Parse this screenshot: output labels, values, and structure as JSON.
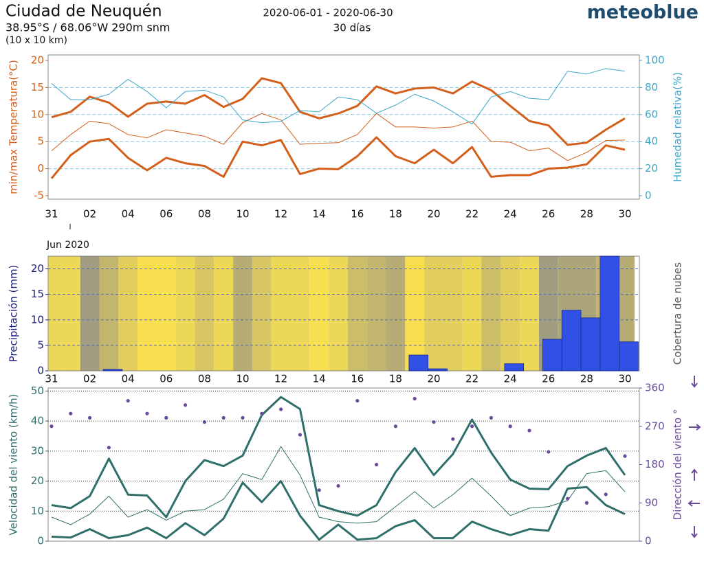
{
  "header": {
    "title": "Ciudad de Neuquén",
    "coords": "38.95°S / 68.06°W   290m snm",
    "grid": "(10 x 10 km)",
    "period": "2020-06-01 - 2020-06-30",
    "days": "30 días",
    "brand": "meteoblue"
  },
  "chart_data": [
    {
      "type": "line",
      "categories": [
        "31",
        null,
        "02",
        null,
        "04",
        null,
        "06",
        null,
        "08",
        null,
        "10",
        null,
        "12",
        null,
        "14",
        null,
        "16",
        null,
        "18",
        null,
        "20",
        null,
        "22",
        null,
        "24",
        null,
        "26",
        null,
        "28",
        null,
        "30"
      ],
      "xlabel": "Jun 2020",
      "ylabel": "min/max Temperatura(°C)",
      "y2label": "Humedad relativa(%)",
      "ylim": [
        -5,
        20
      ],
      "yticks": [
        -5,
        0,
        5,
        10,
        15,
        20
      ],
      "y2lim": [
        0,
        100
      ],
      "y2ticks": [
        0,
        20,
        40,
        60,
        80,
        100
      ],
      "grid": true,
      "series": [
        {
          "color": "#d35f1a",
          "width": 3,
          "values": [
            9.5,
            10.5,
            13.3,
            12.2,
            9.6,
            12,
            12.4,
            12,
            13.6,
            11.4,
            12.9,
            16.7,
            15.8,
            10.5,
            9.3,
            10.2,
            11.6,
            15.2,
            13.9,
            14.8,
            15,
            13.9,
            16.1,
            14.5,
            11.6,
            8.8,
            8,
            4.4,
            4.8,
            7.2,
            9.3
          ]
        },
        {
          "color": "#d35f1a",
          "width": 1,
          "values": [
            3.3,
            6.3,
            8.8,
            8.3,
            6.3,
            5.7,
            7.2,
            6.6,
            6,
            4.5,
            8.5,
            10.2,
            9,
            4.5,
            4.7,
            4.8,
            6.3,
            10.2,
            7.7,
            7.7,
            7.5,
            7.7,
            8.8,
            5,
            4.9,
            3.3,
            3.8,
            1.5,
            3,
            5.2,
            5.3
          ]
        },
        {
          "color": "#d35f1a",
          "width": 3,
          "values": [
            -1.8,
            2.5,
            5,
            5.5,
            2,
            -0.3,
            2,
            1,
            0.5,
            -1.5,
            5,
            4.3,
            5.3,
            -1,
            0,
            -0.1,
            2.3,
            5.8,
            2.3,
            1,
            3.5,
            1,
            4,
            -1.5,
            -1.2,
            -1.2,
            0,
            0.2,
            0.8,
            4.3,
            3.5
          ]
        },
        {
          "color": "#3aa6c9",
          "width": 1,
          "axis": "y2",
          "values": [
            83,
            71,
            71,
            75,
            86,
            77,
            65,
            77,
            78,
            73,
            56,
            54,
            55,
            63,
            62,
            73,
            71,
            61,
            67,
            75,
            70,
            62,
            53,
            73,
            77,
            72,
            71,
            92,
            90,
            94,
            92
          ]
        }
      ]
    },
    {
      "type": "bar",
      "categories": [
        "31",
        null,
        "02",
        null,
        "04",
        null,
        "06",
        null,
        "08",
        null,
        "10",
        null,
        "12",
        null,
        "14",
        null,
        "16",
        null,
        "18",
        null,
        "20",
        null,
        "22",
        null,
        "24",
        null,
        "26",
        null,
        "28",
        null,
        "30"
      ],
      "ylabel": "Precipitación (mm)",
      "y2label": "Cobertura de nubes",
      "ylim": [
        0,
        22.5
      ],
      "yticks": [
        0,
        5,
        10,
        15,
        20
      ],
      "grid": true,
      "color": "#3050e6",
      "values": [
        0,
        0,
        0,
        0.3,
        0,
        0,
        0,
        0,
        0,
        0,
        0,
        0,
        0,
        0,
        0,
        0,
        0,
        0,
        0,
        3.1,
        0.4,
        0,
        0,
        0,
        1.4,
        0,
        6.2,
        11.9,
        10.4,
        22.5,
        5.7
      ],
      "cloud_cover": [
        10,
        10,
        80,
        50,
        20,
        0,
        0,
        10,
        30,
        10,
        60,
        30,
        10,
        10,
        0,
        10,
        40,
        50,
        60,
        0,
        20,
        20,
        10,
        40,
        20,
        10,
        80,
        70,
        70,
        50,
        60
      ]
    },
    {
      "type": "line",
      "categories": [
        "31",
        null,
        "02",
        null,
        "04",
        null,
        "06",
        null,
        "08",
        null,
        "10",
        null,
        "12",
        null,
        "14",
        null,
        "16",
        null,
        "18",
        null,
        "20",
        null,
        "22",
        null,
        "24",
        null,
        "26",
        null,
        "28",
        null,
        "30"
      ],
      "ylabel": "Velocidad del viento (km/h)",
      "y2label": "Dirección del viento °",
      "ylim": [
        0,
        51
      ],
      "yticks": [
        0,
        10,
        20,
        30,
        40,
        50
      ],
      "y2lim": [
        0,
        360
      ],
      "y2ticks": [
        0,
        90,
        180,
        270,
        360
      ],
      "grid": true,
      "series": [
        {
          "color": "#2f6f6a",
          "width": 3,
          "values": [
            12,
            11,
            15,
            27.5,
            15.5,
            15.2,
            8,
            20,
            27,
            25,
            28.5,
            42,
            48,
            44,
            12,
            10,
            8.5,
            12,
            23,
            31,
            22,
            29,
            40.5,
            29.5,
            20.5,
            17.5,
            17.3,
            25,
            28.5,
            31,
            22
          ]
        },
        {
          "color": "#2f6f6a",
          "width": 1,
          "values": [
            8,
            5.5,
            9,
            15,
            8,
            10.5,
            7,
            10,
            10.5,
            14,
            22.5,
            20.5,
            31.5,
            22,
            8,
            6.5,
            6,
            6.5,
            11.5,
            16.5,
            11,
            15.5,
            21,
            15,
            8.5,
            11,
            11.5,
            13.5,
            22.5,
            23.5,
            16.5
          ]
        },
        {
          "color": "#2f6f6a",
          "width": 3,
          "values": [
            1.5,
            1.2,
            4,
            1,
            2,
            4.5,
            1,
            6,
            2,
            7.5,
            19.5,
            13,
            20,
            8.5,
            0.5,
            5.5,
            0.5,
            1,
            5,
            7,
            1,
            1,
            6.5,
            4,
            2,
            4,
            3.5,
            17.5,
            18,
            12,
            9
          ]
        },
        {
          "type": "scatter",
          "color": "#6a4a9a",
          "axis": "y2",
          "values": [
            270,
            300,
            290,
            220,
            330,
            300,
            290,
            320,
            280,
            290,
            290,
            300,
            310,
            250,
            120,
            130,
            330,
            180,
            270,
            335,
            280,
            240,
            270,
            290,
            270,
            260,
            210,
            100,
            90,
            110,
            200
          ]
        }
      ]
    }
  ]
}
